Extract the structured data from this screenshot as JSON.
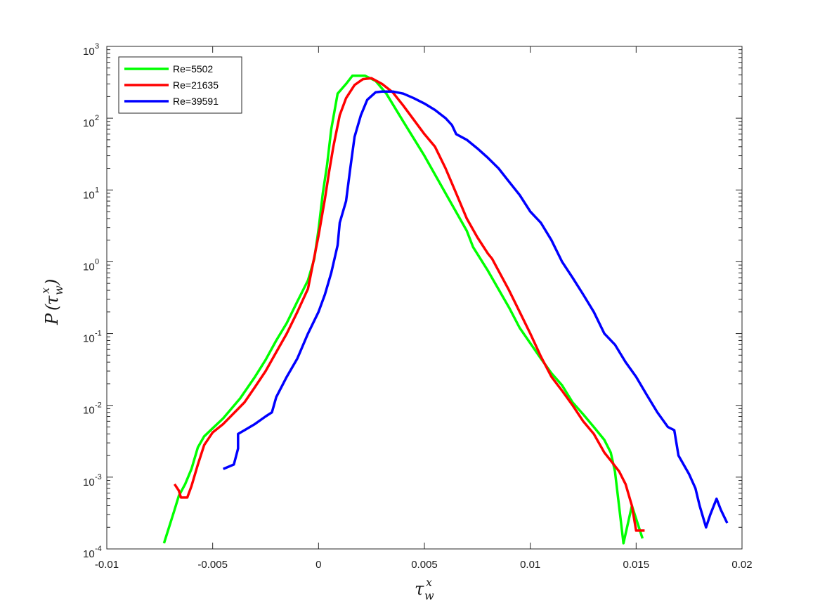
{
  "chart_data": {
    "type": "line",
    "title": "",
    "xlabel": "τ_w^x",
    "ylabel": "P(τ_w^x)",
    "xlim": [
      -0.01,
      0.02
    ],
    "ylim": [
      0.0001,
      1000
    ],
    "yscale": "log",
    "grid": false,
    "legend_position": "top-left",
    "x_ticks": [
      "-0.01",
      "-0.005",
      "0",
      "0.005",
      "0.01",
      "0.015",
      "0.02"
    ],
    "x_tick_values": [
      -0.01,
      -0.005,
      0,
      0.005,
      0.01,
      0.015,
      0.02
    ],
    "y_ticks": [
      {
        "base": "10",
        "exp": "-4",
        "value": 0.0001
      },
      {
        "base": "10",
        "exp": "-3",
        "value": 0.001
      },
      {
        "base": "10",
        "exp": "-2",
        "value": 0.01
      },
      {
        "base": "10",
        "exp": "-1",
        "value": 0.1
      },
      {
        "base": "10",
        "exp": "0",
        "value": 1
      },
      {
        "base": "10",
        "exp": "1",
        "value": 10
      },
      {
        "base": "10",
        "exp": "2",
        "value": 100
      },
      {
        "base": "10",
        "exp": "3",
        "value": 1000
      }
    ],
    "series": [
      {
        "name": "Re=5502",
        "color": "#00ff00",
        "points": [
          [
            -0.0073,
            0.00012
          ],
          [
            -0.0068,
            0.00035
          ],
          [
            -0.0066,
            0.00055
          ],
          [
            -0.0063,
            0.0008
          ],
          [
            -0.006,
            0.0013
          ],
          [
            -0.0057,
            0.0026
          ],
          [
            -0.0054,
            0.0037
          ],
          [
            -0.005,
            0.0048
          ],
          [
            -0.0045,
            0.0066
          ],
          [
            -0.0037,
            0.0125
          ],
          [
            -0.003,
            0.025
          ],
          [
            -0.0025,
            0.043
          ],
          [
            -0.002,
            0.08
          ],
          [
            -0.0015,
            0.14
          ],
          [
            -0.001,
            0.28
          ],
          [
            -0.0005,
            0.55
          ],
          [
            -0.0002,
            1.1
          ],
          [
            0.0,
            2.8
          ],
          [
            0.0002,
            9.0
          ],
          [
            0.0004,
            22
          ],
          [
            0.0006,
            70
          ],
          [
            0.0009,
            220
          ],
          [
            0.0013,
            300
          ],
          [
            0.0016,
            390
          ],
          [
            0.0022,
            390
          ],
          [
            0.0027,
            330
          ],
          [
            0.0032,
            220
          ],
          [
            0.004,
            90
          ],
          [
            0.005,
            30
          ],
          [
            0.006,
            9.0
          ],
          [
            0.007,
            2.7
          ],
          [
            0.0073,
            1.6
          ],
          [
            0.008,
            0.75
          ],
          [
            0.009,
            0.23
          ],
          [
            0.0095,
            0.12
          ],
          [
            0.0105,
            0.045
          ],
          [
            0.011,
            0.028
          ],
          [
            0.0115,
            0.019
          ],
          [
            0.012,
            0.011
          ],
          [
            0.0125,
            0.0075
          ],
          [
            0.013,
            0.005
          ],
          [
            0.0135,
            0.0033
          ],
          [
            0.0138,
            0.0022
          ],
          [
            0.014,
            0.0012
          ],
          [
            0.0144,
            0.00012
          ],
          [
            0.0148,
            0.0004
          ],
          [
            0.0153,
            0.00014
          ]
        ]
      },
      {
        "name": "Re=21635",
        "color": "#ff0000",
        "points": [
          [
            -0.0068,
            0.0008
          ],
          [
            -0.0066,
            0.00065
          ],
          [
            -0.0065,
            0.00052
          ],
          [
            -0.0062,
            0.00052
          ],
          [
            -0.006,
            0.00075
          ],
          [
            -0.0057,
            0.0015
          ],
          [
            -0.0054,
            0.0028
          ],
          [
            -0.005,
            0.0042
          ],
          [
            -0.0045,
            0.0055
          ],
          [
            -0.0035,
            0.011
          ],
          [
            -0.003,
            0.018
          ],
          [
            -0.0025,
            0.03
          ],
          [
            -0.002,
            0.055
          ],
          [
            -0.0015,
            0.1
          ],
          [
            -0.001,
            0.2
          ],
          [
            -0.0005,
            0.42
          ],
          [
            0.0,
            2.3
          ],
          [
            0.0003,
            7.5
          ],
          [
            0.0005,
            18
          ],
          [
            0.0007,
            40
          ],
          [
            0.001,
            110
          ],
          [
            0.0013,
            190
          ],
          [
            0.0017,
            290
          ],
          [
            0.0021,
            350
          ],
          [
            0.0025,
            360
          ],
          [
            0.003,
            300
          ],
          [
            0.0035,
            230
          ],
          [
            0.004,
            150
          ],
          [
            0.0045,
            95
          ],
          [
            0.005,
            60
          ],
          [
            0.0055,
            40
          ],
          [
            0.006,
            20
          ],
          [
            0.0065,
            9.0
          ],
          [
            0.007,
            4.0
          ],
          [
            0.0075,
            2.2
          ],
          [
            0.008,
            1.3
          ],
          [
            0.0082,
            1.1
          ],
          [
            0.0085,
            0.75
          ],
          [
            0.009,
            0.4
          ],
          [
            0.0095,
            0.2
          ],
          [
            0.01,
            0.1
          ],
          [
            0.0105,
            0.048
          ],
          [
            0.011,
            0.025
          ],
          [
            0.0115,
            0.016
          ],
          [
            0.012,
            0.01
          ],
          [
            0.0125,
            0.006
          ],
          [
            0.013,
            0.004
          ],
          [
            0.0135,
            0.0022
          ],
          [
            0.0138,
            0.0017
          ],
          [
            0.0142,
            0.0012
          ],
          [
            0.0145,
            0.0008
          ],
          [
            0.0148,
            0.0004
          ],
          [
            0.015,
            0.00018
          ],
          [
            0.0154,
            0.00018
          ]
        ]
      },
      {
        "name": "Re=39591",
        "color": "#0000ff",
        "points": [
          [
            -0.0045,
            0.0013
          ],
          [
            -0.004,
            0.0015
          ],
          [
            -0.0038,
            0.0025
          ],
          [
            -0.0038,
            0.004
          ],
          [
            -0.0035,
            0.0045
          ],
          [
            -0.003,
            0.0055
          ],
          [
            -0.0025,
            0.007
          ],
          [
            -0.0022,
            0.008
          ],
          [
            -0.002,
            0.013
          ],
          [
            -0.0015,
            0.025
          ],
          [
            -0.001,
            0.045
          ],
          [
            -0.0005,
            0.1
          ],
          [
            0.0,
            0.2
          ],
          [
            0.0003,
            0.35
          ],
          [
            0.0006,
            0.7
          ],
          [
            0.0009,
            1.7
          ],
          [
            0.001,
            3.5
          ],
          [
            0.0013,
            7.0
          ],
          [
            0.0015,
            20
          ],
          [
            0.0017,
            55
          ],
          [
            0.002,
            110
          ],
          [
            0.0023,
            180
          ],
          [
            0.0027,
            230
          ],
          [
            0.003,
            235
          ],
          [
            0.0035,
            235
          ],
          [
            0.004,
            220
          ],
          [
            0.0045,
            190
          ],
          [
            0.005,
            160
          ],
          [
            0.0055,
            130
          ],
          [
            0.006,
            100
          ],
          [
            0.0063,
            80
          ],
          [
            0.0065,
            60
          ],
          [
            0.007,
            50
          ],
          [
            0.0075,
            38
          ],
          [
            0.008,
            28
          ],
          [
            0.0085,
            20
          ],
          [
            0.009,
            13
          ],
          [
            0.0095,
            8.5
          ],
          [
            0.01,
            5.0
          ],
          [
            0.0105,
            3.5
          ],
          [
            0.011,
            2.0
          ],
          [
            0.0115,
            1.0
          ],
          [
            0.012,
            0.6
          ],
          [
            0.0125,
            0.35
          ],
          [
            0.013,
            0.2
          ],
          [
            0.0135,
            0.1
          ],
          [
            0.014,
            0.07
          ],
          [
            0.0145,
            0.04
          ],
          [
            0.015,
            0.025
          ],
          [
            0.0155,
            0.014
          ],
          [
            0.016,
            0.008
          ],
          [
            0.0165,
            0.005
          ],
          [
            0.0168,
            0.0045
          ],
          [
            0.017,
            0.002
          ],
          [
            0.0175,
            0.0011
          ],
          [
            0.0178,
            0.0007
          ],
          [
            0.018,
            0.0004
          ],
          [
            0.0183,
            0.0002
          ],
          [
            0.0185,
            0.0003
          ],
          [
            0.0188,
            0.0005
          ],
          [
            0.019,
            0.00035
          ],
          [
            0.0193,
            0.00023
          ]
        ]
      }
    ]
  }
}
